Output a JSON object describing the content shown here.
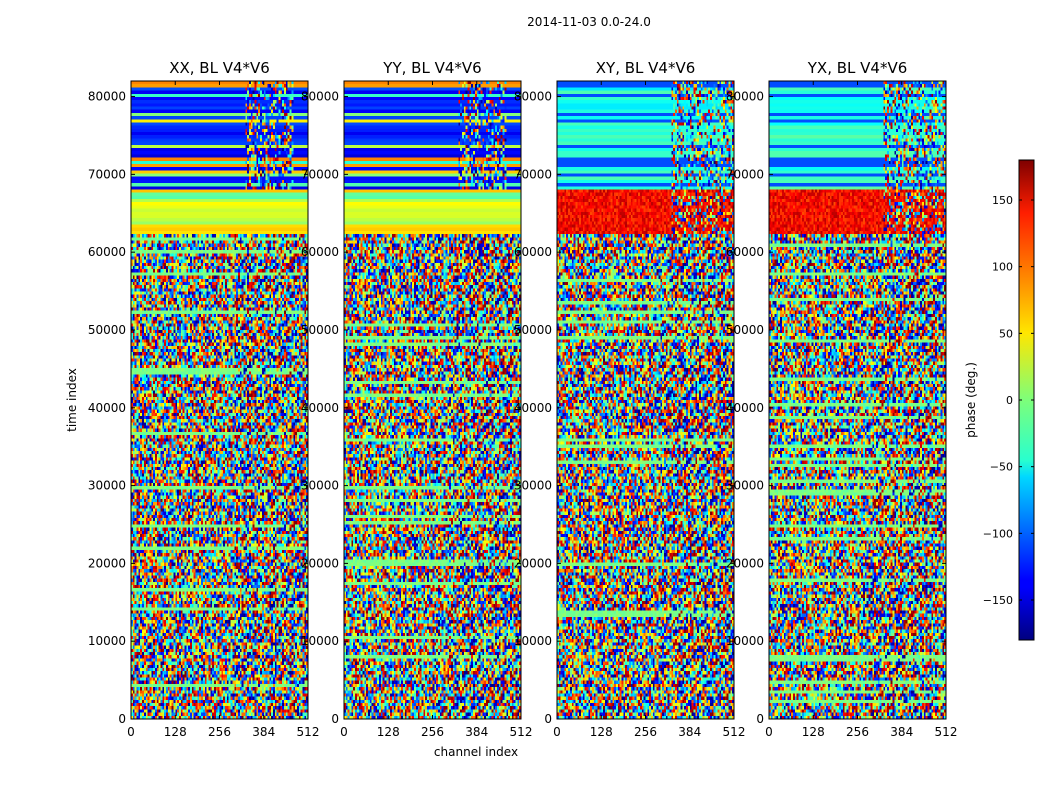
{
  "figure": {
    "suptitle": "2014-11-03 0.0-24.0"
  },
  "chart_data": {
    "type": "heatmap",
    "xlabel": "channel index",
    "ylabel": "time index",
    "xlim": [
      0,
      512
    ],
    "ylim": [
      0,
      82000
    ],
    "xticks": [
      "0",
      "128",
      "256",
      "384",
      "512"
    ],
    "yticks": [
      "0",
      "10000",
      "20000",
      "30000",
      "40000",
      "50000",
      "60000",
      "70000",
      "80000"
    ],
    "panels": [
      {
        "title": "XX, BL V4*V6",
        "style": "parallel"
      },
      {
        "title": "YY, BL V4*V6",
        "style": "parallel"
      },
      {
        "title": "XY, BL V4*V6",
        "style": "cross"
      },
      {
        "title": "YX, BL V4*V6",
        "style": "cross"
      }
    ],
    "colorbar": {
      "label": "phase (deg.)",
      "range": [
        -180,
        180
      ],
      "ticks": [
        "150",
        "100",
        "50",
        "0",
        "−50",
        "−100",
        "−150"
      ],
      "colormap": "jet"
    }
  }
}
